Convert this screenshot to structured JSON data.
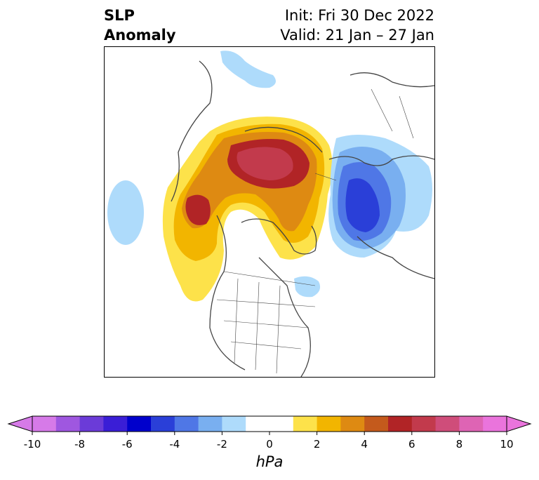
{
  "header": {
    "title_line1": "SLP",
    "title_line2": "Anomaly",
    "init_label": "Init: Fri 30 Dec 2022",
    "valid_label": "Valid: 21 Jan – 27 Jan"
  },
  "colorbar": {
    "unit": "hPa",
    "ticks": [
      "-10",
      "-8",
      "-6",
      "-4",
      "-2",
      "0",
      "2",
      "4",
      "6",
      "8",
      "10"
    ],
    "colors": [
      "#d67ae8",
      "#9f57e0",
      "#6b3bd8",
      "#3a1ed6",
      "#0000cc",
      "#2a3fd8",
      "#4f77e6",
      "#79aff0",
      "#aedbfb",
      "#ffffff",
      "#ffffff",
      "#fde24a",
      "#f2b500",
      "#de8a12",
      "#c45a1c",
      "#b12426",
      "#c23a4c",
      "#cf4d7a",
      "#de64b4",
      "#ea74dc"
    ],
    "extend_min_color": "#d67ae8",
    "extend_max_color": "#ea74dc"
  },
  "map": {
    "projection": "north-polar-stereographic",
    "field": "sea level pressure anomaly"
  }
}
